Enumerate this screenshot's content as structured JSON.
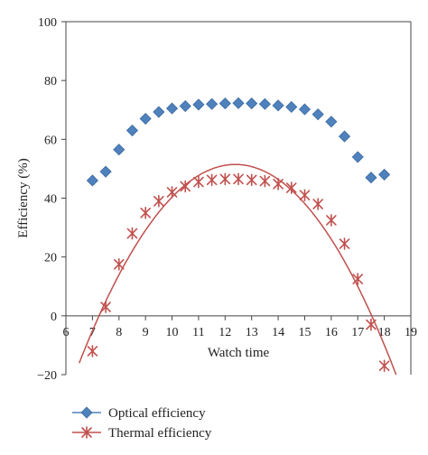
{
  "chart_data": {
    "type": "line",
    "title": "",
    "xlabel": "Watch time",
    "ylabel": "Efficiency (%)",
    "xlim": [
      6,
      19
    ],
    "ylim": [
      -20,
      100
    ],
    "x_ticks": [
      6,
      7,
      8,
      9,
      10,
      11,
      12,
      13,
      14,
      15,
      16,
      17,
      18,
      19
    ],
    "y_ticks": [
      -20,
      0,
      20,
      40,
      60,
      80,
      100
    ],
    "x_tick_labels": [
      "6",
      "7",
      "8",
      "9",
      "10",
      "11",
      "12",
      "13",
      "14",
      "15",
      "16",
      "17",
      "18",
      "19"
    ],
    "y_tick_labels": [
      "−20",
      "0",
      "20",
      "40",
      "60",
      "80",
      "100"
    ],
    "grid": false,
    "legend_position": "bottom-left",
    "series": [
      {
        "name": "Optical efficiency",
        "marker": "diamond",
        "color": "#4F81BD",
        "line": false,
        "x": [
          7,
          7.5,
          8,
          8.5,
          9,
          9.5,
          10,
          10.5,
          11,
          11.5,
          12,
          12.5,
          13,
          13.5,
          14,
          14.5,
          15,
          15.5,
          16,
          16.5,
          17,
          17.5,
          18
        ],
        "y": [
          46,
          49,
          56.5,
          63,
          67,
          69.3,
          70.5,
          71.3,
          71.8,
          72,
          72.2,
          72.3,
          72.2,
          72,
          71.5,
          71,
          70.2,
          68.5,
          66,
          61,
          54,
          47,
          48
        ]
      },
      {
        "name": "Thermal efficiency",
        "marker": "asterisk",
        "color": "#C0504D",
        "line": true,
        "x": [
          7,
          7.5,
          8,
          8.5,
          9,
          9.5,
          10,
          10.5,
          11,
          11.5,
          12,
          12.5,
          13,
          13.5,
          14,
          14.5,
          15,
          15.5,
          16,
          16.5,
          17,
          17.5,
          18
        ],
        "y": [
          -12,
          3,
          17.5,
          28,
          35,
          39,
          42,
          44,
          45.5,
          46.2,
          46.5,
          46.5,
          46.2,
          45.8,
          44.8,
          43.5,
          41,
          38,
          32.5,
          24.5,
          12.5,
          -3,
          -17
        ]
      }
    ]
  }
}
